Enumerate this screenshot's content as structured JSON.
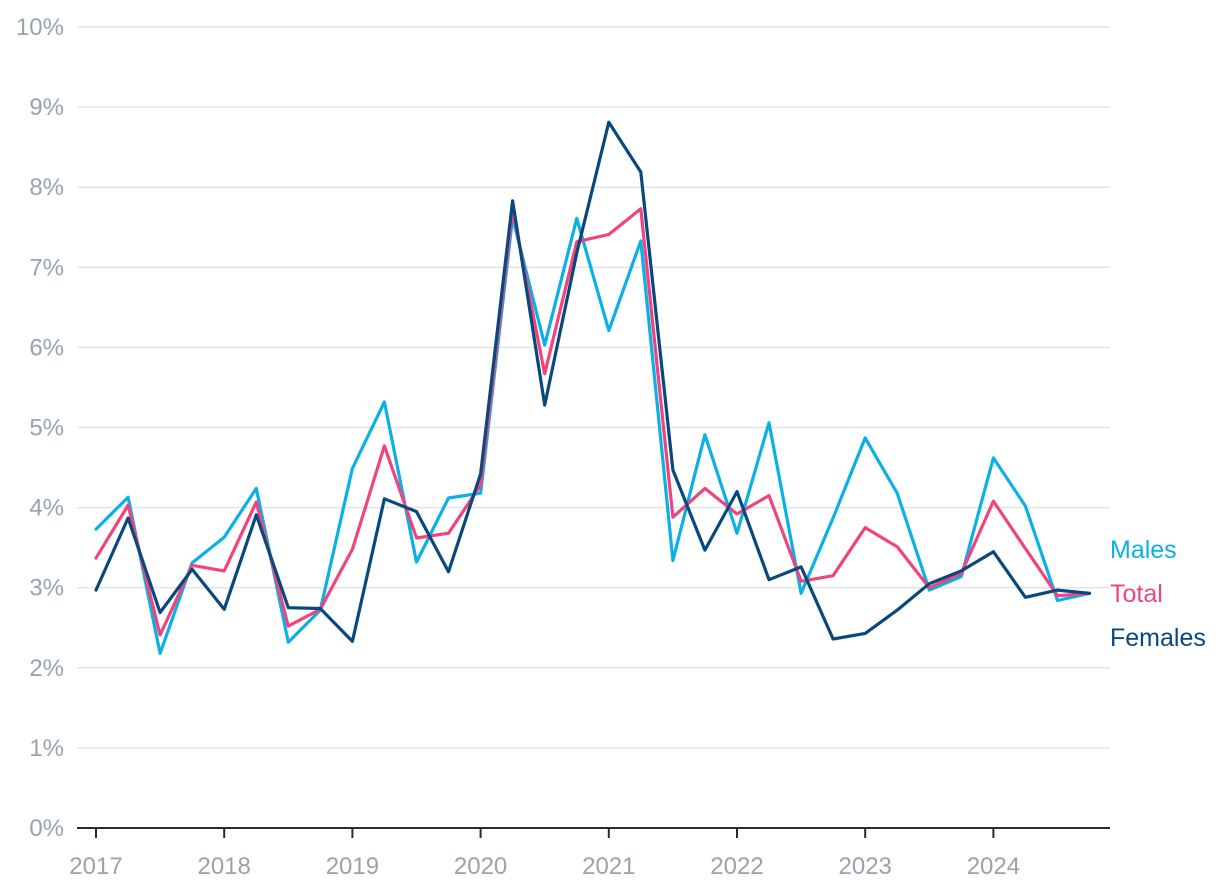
{
  "chart_data": {
    "type": "line",
    "title": "",
    "xlabel": "",
    "ylabel": "",
    "ylim": [
      0,
      10
    ],
    "y_ticks": [
      "0%",
      "1%",
      "2%",
      "3%",
      "4%",
      "5%",
      "6%",
      "7%",
      "8%",
      "9%",
      "10%"
    ],
    "x_ticks": [
      "2017",
      "2018",
      "2019",
      "2020",
      "2021",
      "2022",
      "2023",
      "2024"
    ],
    "x": [
      "2017 Q1",
      "2017 Q2",
      "2017 Q3",
      "2017 Q4",
      "2018 Q1",
      "2018 Q2",
      "2018 Q3",
      "2018 Q4",
      "2019 Q1",
      "2019 Q2",
      "2019 Q3",
      "2019 Q4",
      "2020 Q1",
      "2020 Q2",
      "2020 Q3",
      "2020 Q4",
      "2021 Q1",
      "2021 Q2",
      "2021 Q3",
      "2021 Q4",
      "2022 Q1",
      "2022 Q2",
      "2022 Q3",
      "2022 Q4",
      "2023 Q1",
      "2023 Q2",
      "2023 Q3",
      "2023 Q4",
      "2024 Q1",
      "2024 Q2",
      "2024 Q3",
      "2024 Q4"
    ],
    "grid": true,
    "legend_position": "right-end",
    "series": [
      {
        "name": "Males",
        "color": "#0ab0e6",
        "values": [
          3.73,
          4.13,
          2.18,
          3.31,
          3.63,
          4.24,
          2.32,
          2.72,
          4.49,
          5.32,
          3.32,
          4.12,
          4.18,
          7.62,
          6.03,
          7.61,
          6.21,
          7.33,
          3.34,
          4.91,
          3.68,
          5.06,
          2.93,
          3.87,
          4.87,
          4.18,
          2.97,
          3.14,
          4.62,
          4.02,
          2.84,
          2.93
        ]
      },
      {
        "name": "Total",
        "color": "#f0447f",
        "values": [
          3.37,
          4.03,
          2.41,
          3.28,
          3.21,
          4.07,
          2.52,
          2.73,
          3.48,
          4.77,
          3.62,
          3.68,
          4.28,
          7.72,
          5.67,
          7.32,
          7.41,
          7.73,
          3.88,
          4.24,
          3.92,
          4.15,
          3.08,
          3.15,
          3.75,
          3.51,
          3.0,
          3.18,
          4.08,
          3.49,
          2.9,
          2.93
        ]
      },
      {
        "name": "Females",
        "color": "#07497c",
        "values": [
          2.97,
          3.87,
          2.69,
          3.23,
          2.73,
          3.91,
          2.75,
          2.74,
          2.33,
          4.11,
          3.95,
          3.2,
          4.42,
          7.83,
          5.28,
          7.18,
          8.81,
          8.19,
          4.47,
          3.47,
          4.2,
          3.1,
          3.26,
          2.36,
          2.43,
          2.72,
          3.05,
          3.21,
          3.45,
          2.88,
          2.97,
          2.93
        ]
      }
    ]
  }
}
